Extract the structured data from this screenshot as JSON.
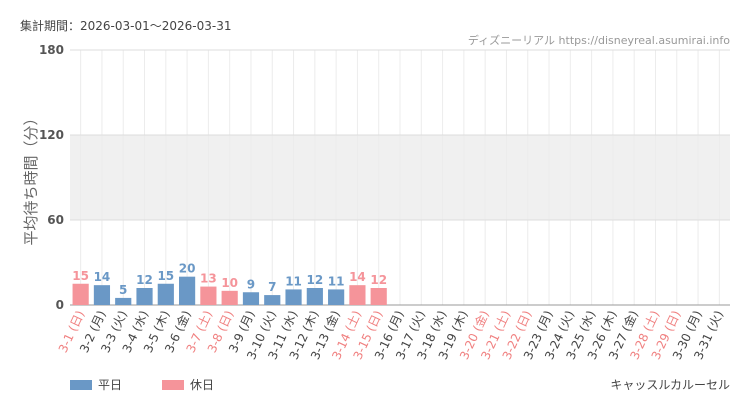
{
  "header": "集計期間：2026-03-01～2026-03-31",
  "source": "ディズニーリアル https://disneyreal.asumirai.info",
  "attraction": "キャッスルカルーセル",
  "chart_data": {
    "type": "bar",
    "y_label": "平均待ち時間（分）",
    "categories": [
      "3-1 (日)",
      "3-2 (月)",
      "3-3 (火)",
      "3-4 (水)",
      "3-5 (木)",
      "3-6 (金)",
      "3-7 (土)",
      "3-8 (日)",
      "3-9 (月)",
      "3-10 (火)",
      "3-11 (水)",
      "3-12 (木)",
      "3-13 (金)",
      "3-14 (土)",
      "3-15 (日)",
      "3-16 (月)",
      "3-17 (火)",
      "3-18 (水)",
      "3-19 (木)",
      "3-20 (金)",
      "3-21 (土)",
      "3-22 (日)",
      "3-23 (月)",
      "3-24 (火)",
      "3-25 (水)",
      "3-26 (木)",
      "3-27 (金)",
      "3-28 (土)",
      "3-29 (日)",
      "3-30 (月)",
      "3-31 (火)"
    ],
    "label_colors": [
      "#f08080",
      "#444",
      "#444",
      "#444",
      "#444",
      "#444",
      "#f08080",
      "#f08080",
      "#444",
      "#444",
      "#444",
      "#444",
      "#444",
      "#f08080",
      "#f08080",
      "#444",
      "#444",
      "#444",
      "#444",
      "#f08080",
      "#f08080",
      "#f08080",
      "#444",
      "#444",
      "#444",
      "#444",
      "#444",
      "#f08080",
      "#f08080",
      "#444",
      "#444"
    ],
    "series": [
      {
        "name": "平日",
        "color": "#6a98c6",
        "values": [
          null,
          14,
          5,
          12,
          15,
          20,
          null,
          null,
          9,
          7,
          11,
          12,
          11,
          null,
          null,
          null,
          null,
          null,
          null,
          null,
          null,
          null,
          null,
          null,
          null,
          null,
          null,
          null,
          null,
          null,
          null
        ]
      },
      {
        "name": "休日",
        "color": "#f5949a",
        "values": [
          15,
          null,
          null,
          null,
          null,
          null,
          13,
          10,
          null,
          null,
          null,
          null,
          null,
          14,
          12,
          null,
          null,
          null,
          null,
          null,
          null,
          null,
          null,
          null,
          null,
          null,
          null,
          null,
          null,
          null,
          null
        ]
      }
    ],
    "ylim": [
      0,
      180
    ],
    "yticks": [
      0,
      60,
      120,
      180
    ],
    "grid": true
  }
}
